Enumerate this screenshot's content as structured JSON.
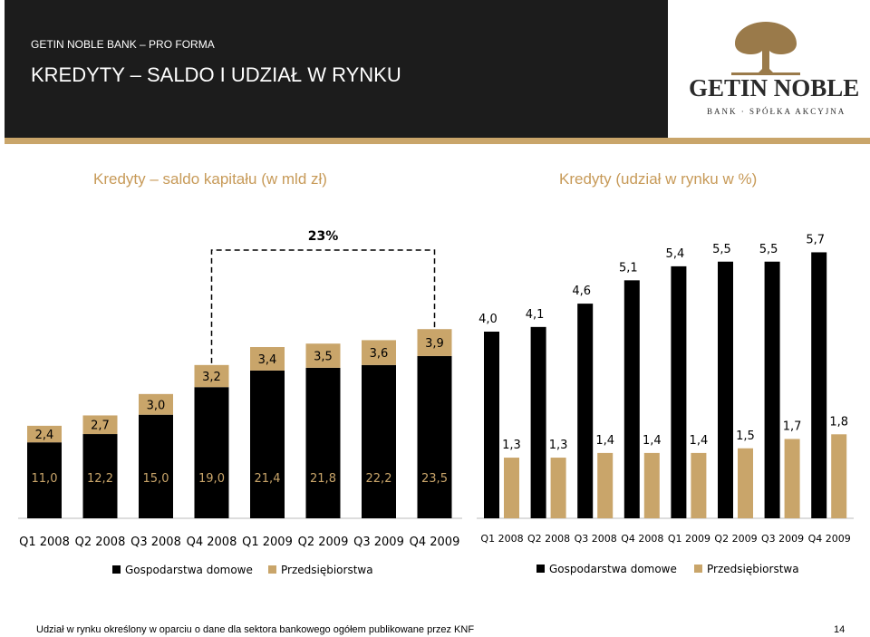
{
  "header": {
    "subtitle": "GETIN NOBLE BANK – PRO FORMA",
    "title": "KREDYTY – SALDO I UDZIAŁ W RYNKU"
  },
  "logo": {
    "name": "GETIN NOBLE",
    "tagline": "BANK · SPÓŁKA AKCYJNA",
    "icon": "tree-icon"
  },
  "colors": {
    "header_bg": "#1c1c1c",
    "accent_gold": "#c9a56a",
    "title_gold": "#c79a58",
    "bar_black": "#000000",
    "bar_gold": "#c9a56a"
  },
  "chart_data": [
    {
      "type": "bar",
      "stacked": true,
      "title": "Kredyty – saldo kapitału (w mld zł)",
      "categories": [
        "Q1 2008",
        "Q2 2008",
        "Q3 2008",
        "Q4 2008",
        "Q1 2009",
        "Q2 2009",
        "Q3 2009",
        "Q4 2009"
      ],
      "series": [
        {
          "name": "Gospodarstwa domowe",
          "values": [
            11.0,
            12.2,
            15.0,
            19.0,
            21.4,
            21.8,
            22.2,
            23.5
          ],
          "labels": [
            "11,0",
            "12,2",
            "15,0",
            "19,0",
            "21,4",
            "21,8",
            "22,2",
            "23,5"
          ]
        },
        {
          "name": "Przedsiębiorstwa",
          "values": [
            2.4,
            2.7,
            3.0,
            3.2,
            3.4,
            3.5,
            3.6,
            3.9
          ],
          "labels": [
            "2,4",
            "2,7",
            "3,0",
            "3,2",
            "3,4",
            "3,5",
            "3,6",
            "3,9"
          ]
        }
      ],
      "annotation": "23%",
      "legend_position": "bottom"
    },
    {
      "type": "bar",
      "title": "Kredyty  (udział w rynku w %)",
      "categories": [
        "Q1 2008",
        "Q2 2008",
        "Q3 2008",
        "Q4 2008",
        "Q1 2009",
        "Q2 2009",
        "Q3 2009",
        "Q4 2009"
      ],
      "series": [
        {
          "name": "Gospodarstwa domowe",
          "values": [
            4.0,
            4.1,
            4.6,
            5.1,
            5.4,
            5.5,
            5.5,
            5.7
          ],
          "labels": [
            "4,0",
            "4,1",
            "4,6",
            "5,1",
            "5,4",
            "5,5",
            "5,5",
            "5,7"
          ]
        },
        {
          "name": "Przedsiębiorstwa",
          "values": [
            1.3,
            1.3,
            1.4,
            1.4,
            1.4,
            1.5,
            1.7,
            1.8
          ],
          "labels": [
            "1,3",
            "1,3",
            "1,4",
            "1,4",
            "1,4",
            "1,5",
            "1,7",
            "1,8"
          ]
        }
      ],
      "legend_position": "bottom"
    }
  ],
  "footnote": "Udział w rynku określony w oparciu o dane dla sektora bankowego ogółem publikowane przez KNF",
  "page_number": "14"
}
